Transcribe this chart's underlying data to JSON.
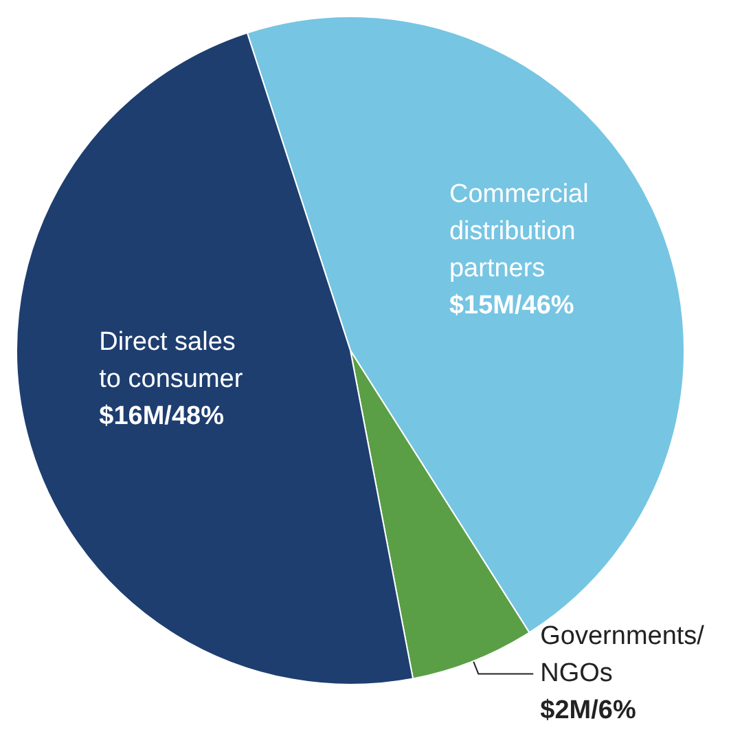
{
  "chart_data": {
    "type": "pie",
    "categories": [
      "Commercial distribution partners",
      "Governments/ NGOs",
      "Direct sales to consumer"
    ],
    "values": [
      46,
      6,
      48
    ],
    "colors": [
      "#76c5e3",
      "#5a9f45",
      "#1e3e70"
    ],
    "value_labels": [
      "$15M/46%",
      "$2M/6%",
      "$16M/48%"
    ]
  }
}
